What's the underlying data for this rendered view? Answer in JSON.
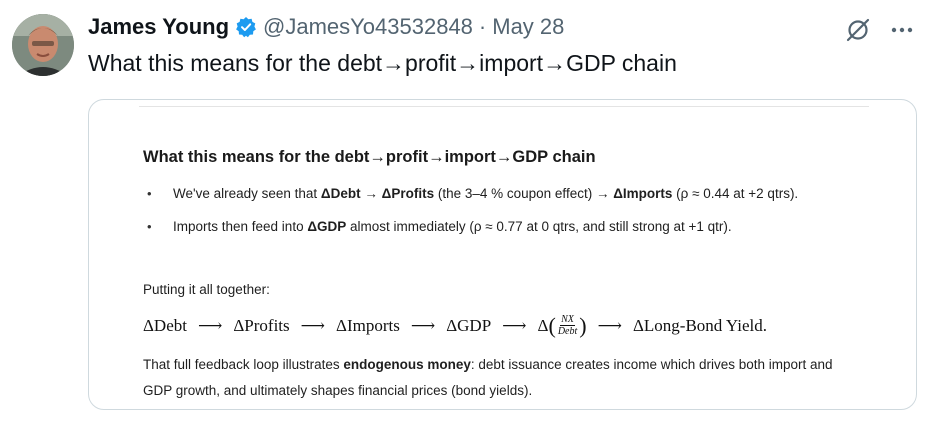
{
  "author": {
    "name": "James Young",
    "handle": "@JamesYo43532848",
    "separator": "·",
    "date": "May 28"
  },
  "tweet_text": "What this means for the debt→profit→import→GDP chain",
  "card": {
    "title": "What this means for the debt→profit→import→GDP chain",
    "bullet1": {
      "pre": "We've already seen that ",
      "bold1": "ΔDebt → ΔProfits",
      "mid": " (the 3–4 % coupon effect) → ",
      "bold2": "ΔImports",
      "post": " (ρ ≈ 0.44 at +2 qtrs)."
    },
    "bullet2": {
      "pre": "Imports then feed into ",
      "bold": "ΔGDP",
      "post": " almost immediately (ρ ≈ 0.77 at 0 qtrs, and still strong at +1 qtr)."
    },
    "together": "Putting it all together:",
    "chain": {
      "debt": "ΔDebt",
      "profits": "ΔProfits",
      "imports": "ΔImports",
      "gdp": "ΔGDP",
      "delta": "Δ",
      "frac_num": "NX",
      "frac_den": "Debt",
      "yield": "ΔLong-Bond Yield.",
      "arrow": "⟶"
    },
    "closing": {
      "pre": "That full feedback loop illustrates ",
      "bold": "endogenous money",
      "post": ": debt issuance creates income which drives both import and GDP growth, and ultimately shapes financial prices (bond yields)."
    }
  },
  "icons": {
    "verified": "verified-badge-icon",
    "grok": "grok-icon",
    "more": "more-icon"
  },
  "colors": {
    "verified_blue": "#1d9bf0",
    "secondary_text": "#536471",
    "border": "#cfd9de"
  }
}
